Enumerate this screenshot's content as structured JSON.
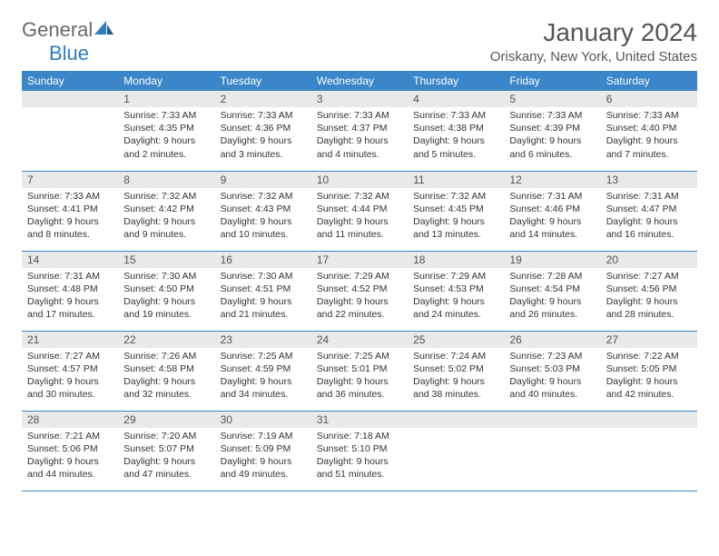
{
  "logo": {
    "general": "General",
    "blue": "Blue"
  },
  "title": "January 2024",
  "location": "Oriskany, New York, United States",
  "colors": {
    "header_bg": "#3a86c8",
    "header_text": "#ffffff",
    "daynum_bg": "#e9e9e9",
    "body_text": "#333333",
    "title_text": "#555555",
    "divider": "#3a86c8",
    "logo_general": "#6a6a6a",
    "logo_blue": "#2e7cc0"
  },
  "weekdays": [
    "Sunday",
    "Monday",
    "Tuesday",
    "Wednesday",
    "Thursday",
    "Friday",
    "Saturday"
  ],
  "weeks": [
    [
      {
        "n": "",
        "sr": "",
        "ss": "",
        "d1": "",
        "d2": ""
      },
      {
        "n": "1",
        "sr": "Sunrise: 7:33 AM",
        "ss": "Sunset: 4:35 PM",
        "d1": "Daylight: 9 hours",
        "d2": "and 2 minutes."
      },
      {
        "n": "2",
        "sr": "Sunrise: 7:33 AM",
        "ss": "Sunset: 4:36 PM",
        "d1": "Daylight: 9 hours",
        "d2": "and 3 minutes."
      },
      {
        "n": "3",
        "sr": "Sunrise: 7:33 AM",
        "ss": "Sunset: 4:37 PM",
        "d1": "Daylight: 9 hours",
        "d2": "and 4 minutes."
      },
      {
        "n": "4",
        "sr": "Sunrise: 7:33 AM",
        "ss": "Sunset: 4:38 PM",
        "d1": "Daylight: 9 hours",
        "d2": "and 5 minutes."
      },
      {
        "n": "5",
        "sr": "Sunrise: 7:33 AM",
        "ss": "Sunset: 4:39 PM",
        "d1": "Daylight: 9 hours",
        "d2": "and 6 minutes."
      },
      {
        "n": "6",
        "sr": "Sunrise: 7:33 AM",
        "ss": "Sunset: 4:40 PM",
        "d1": "Daylight: 9 hours",
        "d2": "and 7 minutes."
      }
    ],
    [
      {
        "n": "7",
        "sr": "Sunrise: 7:33 AM",
        "ss": "Sunset: 4:41 PM",
        "d1": "Daylight: 9 hours",
        "d2": "and 8 minutes."
      },
      {
        "n": "8",
        "sr": "Sunrise: 7:32 AM",
        "ss": "Sunset: 4:42 PM",
        "d1": "Daylight: 9 hours",
        "d2": "and 9 minutes."
      },
      {
        "n": "9",
        "sr": "Sunrise: 7:32 AM",
        "ss": "Sunset: 4:43 PM",
        "d1": "Daylight: 9 hours",
        "d2": "and 10 minutes."
      },
      {
        "n": "10",
        "sr": "Sunrise: 7:32 AM",
        "ss": "Sunset: 4:44 PM",
        "d1": "Daylight: 9 hours",
        "d2": "and 11 minutes."
      },
      {
        "n": "11",
        "sr": "Sunrise: 7:32 AM",
        "ss": "Sunset: 4:45 PM",
        "d1": "Daylight: 9 hours",
        "d2": "and 13 minutes."
      },
      {
        "n": "12",
        "sr": "Sunrise: 7:31 AM",
        "ss": "Sunset: 4:46 PM",
        "d1": "Daylight: 9 hours",
        "d2": "and 14 minutes."
      },
      {
        "n": "13",
        "sr": "Sunrise: 7:31 AM",
        "ss": "Sunset: 4:47 PM",
        "d1": "Daylight: 9 hours",
        "d2": "and 16 minutes."
      }
    ],
    [
      {
        "n": "14",
        "sr": "Sunrise: 7:31 AM",
        "ss": "Sunset: 4:48 PM",
        "d1": "Daylight: 9 hours",
        "d2": "and 17 minutes."
      },
      {
        "n": "15",
        "sr": "Sunrise: 7:30 AM",
        "ss": "Sunset: 4:50 PM",
        "d1": "Daylight: 9 hours",
        "d2": "and 19 minutes."
      },
      {
        "n": "16",
        "sr": "Sunrise: 7:30 AM",
        "ss": "Sunset: 4:51 PM",
        "d1": "Daylight: 9 hours",
        "d2": "and 21 minutes."
      },
      {
        "n": "17",
        "sr": "Sunrise: 7:29 AM",
        "ss": "Sunset: 4:52 PM",
        "d1": "Daylight: 9 hours",
        "d2": "and 22 minutes."
      },
      {
        "n": "18",
        "sr": "Sunrise: 7:29 AM",
        "ss": "Sunset: 4:53 PM",
        "d1": "Daylight: 9 hours",
        "d2": "and 24 minutes."
      },
      {
        "n": "19",
        "sr": "Sunrise: 7:28 AM",
        "ss": "Sunset: 4:54 PM",
        "d1": "Daylight: 9 hours",
        "d2": "and 26 minutes."
      },
      {
        "n": "20",
        "sr": "Sunrise: 7:27 AM",
        "ss": "Sunset: 4:56 PM",
        "d1": "Daylight: 9 hours",
        "d2": "and 28 minutes."
      }
    ],
    [
      {
        "n": "21",
        "sr": "Sunrise: 7:27 AM",
        "ss": "Sunset: 4:57 PM",
        "d1": "Daylight: 9 hours",
        "d2": "and 30 minutes."
      },
      {
        "n": "22",
        "sr": "Sunrise: 7:26 AM",
        "ss": "Sunset: 4:58 PM",
        "d1": "Daylight: 9 hours",
        "d2": "and 32 minutes."
      },
      {
        "n": "23",
        "sr": "Sunrise: 7:25 AM",
        "ss": "Sunset: 4:59 PM",
        "d1": "Daylight: 9 hours",
        "d2": "and 34 minutes."
      },
      {
        "n": "24",
        "sr": "Sunrise: 7:25 AM",
        "ss": "Sunset: 5:01 PM",
        "d1": "Daylight: 9 hours",
        "d2": "and 36 minutes."
      },
      {
        "n": "25",
        "sr": "Sunrise: 7:24 AM",
        "ss": "Sunset: 5:02 PM",
        "d1": "Daylight: 9 hours",
        "d2": "and 38 minutes."
      },
      {
        "n": "26",
        "sr": "Sunrise: 7:23 AM",
        "ss": "Sunset: 5:03 PM",
        "d1": "Daylight: 9 hours",
        "d2": "and 40 minutes."
      },
      {
        "n": "27",
        "sr": "Sunrise: 7:22 AM",
        "ss": "Sunset: 5:05 PM",
        "d1": "Daylight: 9 hours",
        "d2": "and 42 minutes."
      }
    ],
    [
      {
        "n": "28",
        "sr": "Sunrise: 7:21 AM",
        "ss": "Sunset: 5:06 PM",
        "d1": "Daylight: 9 hours",
        "d2": "and 44 minutes."
      },
      {
        "n": "29",
        "sr": "Sunrise: 7:20 AM",
        "ss": "Sunset: 5:07 PM",
        "d1": "Daylight: 9 hours",
        "d2": "and 47 minutes."
      },
      {
        "n": "30",
        "sr": "Sunrise: 7:19 AM",
        "ss": "Sunset: 5:09 PM",
        "d1": "Daylight: 9 hours",
        "d2": "and 49 minutes."
      },
      {
        "n": "31",
        "sr": "Sunrise: 7:18 AM",
        "ss": "Sunset: 5:10 PM",
        "d1": "Daylight: 9 hours",
        "d2": "and 51 minutes."
      },
      {
        "n": "",
        "sr": "",
        "ss": "",
        "d1": "",
        "d2": ""
      },
      {
        "n": "",
        "sr": "",
        "ss": "",
        "d1": "",
        "d2": ""
      },
      {
        "n": "",
        "sr": "",
        "ss": "",
        "d1": "",
        "d2": ""
      }
    ]
  ]
}
